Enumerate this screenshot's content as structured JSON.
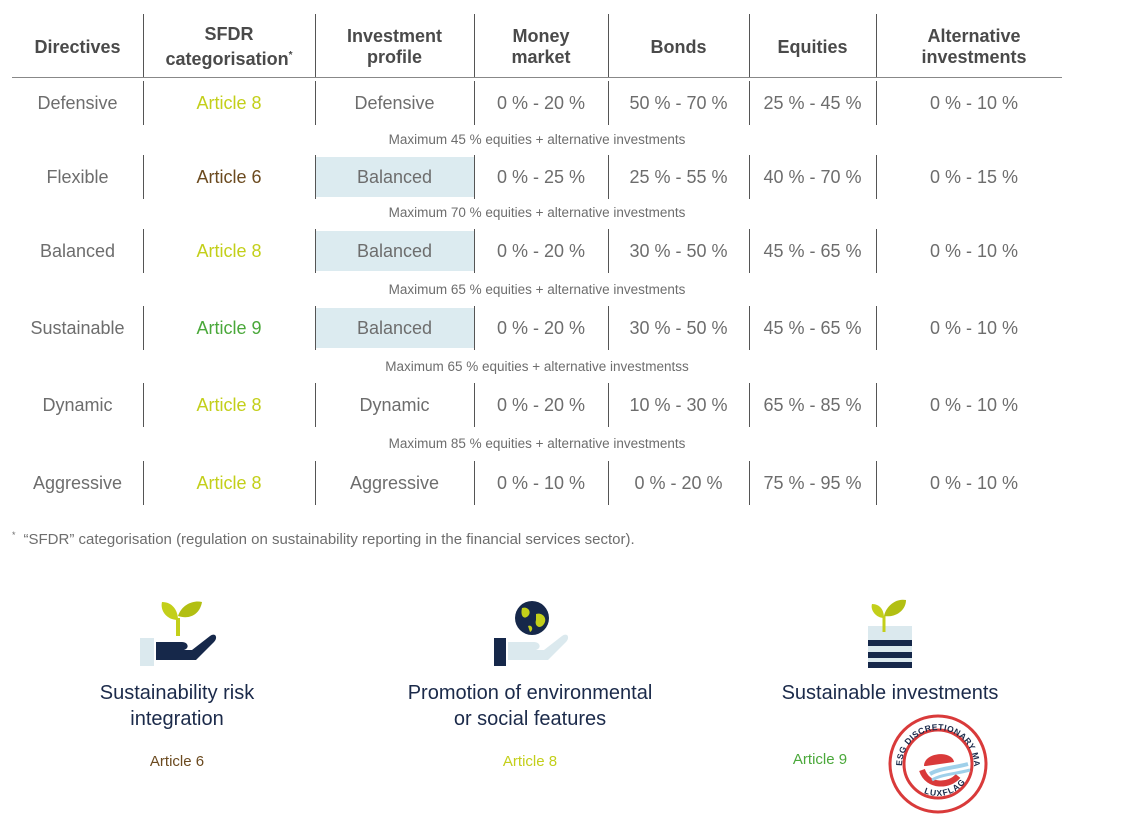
{
  "headers": {
    "directives": "Directives",
    "sfdr_line1": "SFDR",
    "sfdr_line2": "categorisation",
    "sfdr_mark": "*",
    "profile_line1": "Investment",
    "profile_line2": "profile",
    "money_line1": "Money",
    "money_line2": "market",
    "bonds": "Bonds",
    "equities": "Equities",
    "alt_line1": "Alternative",
    "alt_line2": "investments"
  },
  "rows": [
    {
      "directive": "Defensive",
      "article": "Article 8",
      "article_color": "#c3cf1a",
      "profile": "Defensive",
      "profile_highlight": false,
      "money": "0 % - 20 %",
      "bonds": "50 % - 70 %",
      "equities": "25 % - 45 %",
      "alt": "0 % - 10 %",
      "note": "Maximum 45 % equities + alternative investments"
    },
    {
      "directive": "Flexible",
      "article": "Article 6",
      "article_color": "#6b4a1f",
      "profile": "Balanced",
      "profile_highlight": true,
      "money": "0 % - 25 %",
      "bonds": "25 % - 55 %",
      "equities": "40 % - 70 %",
      "alt": "0 % - 15 %",
      "note": "Maximum 70 % equities + alternative investments"
    },
    {
      "directive": "Balanced",
      "article": "Article 8",
      "article_color": "#c3cf1a",
      "profile": "Balanced",
      "profile_highlight": true,
      "money": "0 % - 20 %",
      "bonds": "30 % - 50 %",
      "equities": "45 % - 65 %",
      "alt": "0 % - 10 %",
      "note": "Maximum 65 % equities + alternative investments"
    },
    {
      "directive": "Sustainable",
      "article": "Article 9",
      "article_color": "#4aa83a",
      "profile": "Balanced",
      "profile_highlight": true,
      "money": "0 % - 20 %",
      "bonds": "30 % - 50 %",
      "equities": "45 % - 65 %",
      "alt": "0 % - 10 %",
      "note": "Maximum 65 % equities + alternative investmentss"
    },
    {
      "directive": "Dynamic",
      "article": "Article 8",
      "article_color": "#c3cf1a",
      "profile": "Dynamic",
      "profile_highlight": false,
      "money": "0 % - 20 %",
      "bonds": "10 % - 30 %",
      "equities": "65 % - 85 %",
      "alt": "0 % - 10 %",
      "note": "Maximum 85 % equities + alternative investments"
    },
    {
      "directive": "Aggressive",
      "article": "Article 8",
      "article_color": "#c3cf1a",
      "profile": "Aggressive",
      "profile_highlight": false,
      "money": "0 % - 10 %",
      "bonds": "0 % - 20 %",
      "equities": "75 % - 95 %",
      "alt": "0 % - 10 %",
      "note": ""
    }
  ],
  "footnote": {
    "mark": "*",
    "text": "“SFDR” categorisation (regulation on sustainability reporting in the financial services sector)."
  },
  "blocks": [
    {
      "title_line1": "Sustainability risk",
      "title_line2": "integration",
      "article": "Article 6",
      "article_color": "#6b4a1f",
      "icon": "plant-in-hand-icon"
    },
    {
      "title_line1": "Promotion of environmental",
      "title_line2": "or social features",
      "article": "Article 8",
      "article_color": "#c3cf1a",
      "icon": "globe-in-hand-icon"
    },
    {
      "title_line1": "Sustainable investments",
      "title_line2": "",
      "article": "Article 9",
      "article_color": "#4aa83a",
      "icon": "plant-on-stack-icon"
    }
  ],
  "seal": {
    "text_top": "ESG DISCRETIONARY MANDATE",
    "text_bottom": "LUXFLAG",
    "color": "#d93a3a",
    "icon": "luxflag-seal-icon"
  }
}
